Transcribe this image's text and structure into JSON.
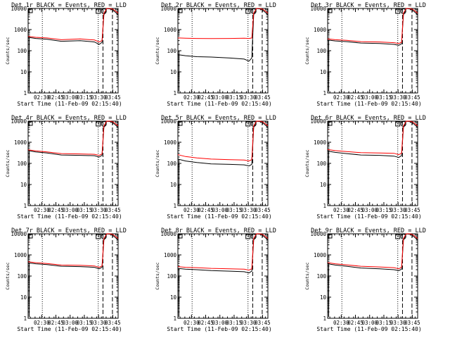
{
  "figure": {
    "xaxis_label": "Start Time (11-Feb-09 02:15:40)",
    "ylabel": "Counts/sec",
    "y_ticks": [
      "1",
      "10",
      "100",
      "1000",
      "10000"
    ],
    "x_ticks": [
      "02:30",
      "02:45",
      "03:00",
      "03:15",
      "03:30",
      "03:45"
    ],
    "y_scale": "log",
    "colors": {
      "events": "#000000",
      "lld": "#ff0000"
    }
  },
  "chart_data": [
    {
      "type": "line",
      "title": "Det 1r BLACK = Events, RED = LLD",
      "xlabel": "Start Time (11-Feb-09 02:15:40)",
      "ylabel": "Counts/sec",
      "y_scale": "log",
      "ylim": [
        1,
        10000
      ],
      "x_unit": "minutes after 02:15:40",
      "xlim": [
        0,
        95
      ],
      "x": [
        0,
        8,
        20,
        35,
        55,
        70,
        75,
        78,
        80,
        83,
        87,
        90,
        95
      ],
      "series": [
        {
          "name": "Events",
          "values": [
            430,
            380,
            350,
            280,
            300,
            260,
            200,
            250,
            5000,
            9800,
            9500,
            8000,
            5000
          ]
        },
        {
          "name": "LLD",
          "values": [
            470,
            430,
            400,
            330,
            360,
            320,
            260,
            300,
            6000,
            10500,
            10000,
            9000,
            6000
          ]
        }
      ],
      "vlines_dotted": [
        15,
        74
      ],
      "vlines_dashed": [
        79,
        89
      ]
    },
    {
      "type": "line",
      "title": "Det 2r BLACK = Events, RED = LLD",
      "xlabel": "Start Time (11-Feb-09 02:15:40)",
      "ylabel": "Counts/sec",
      "y_scale": "log",
      "ylim": [
        1,
        10000
      ],
      "xlim": [
        0,
        95
      ],
      "x": [
        0,
        8,
        20,
        35,
        55,
        70,
        75,
        78,
        80,
        83,
        87,
        90,
        95
      ],
      "series": [
        {
          "name": "Events",
          "values": [
            65,
            58,
            52,
            50,
            45,
            40,
            32,
            45,
            5000,
            9800,
            9500,
            8000,
            5000
          ]
        },
        {
          "name": "LLD",
          "values": [
            400,
            390,
            380,
            375,
            380,
            390,
            380,
            400,
            6000,
            10500,
            10000,
            9000,
            6000
          ]
        }
      ],
      "vlines_dotted": [
        15,
        74
      ],
      "vlines_dashed": [
        79,
        89
      ]
    },
    {
      "type": "line",
      "title": "Det 3r BLACK = Events, RED = LLD",
      "xlabel": "Start Time (11-Feb-09 02:15:40)",
      "ylabel": "Counts/sec",
      "y_scale": "log",
      "ylim": [
        1,
        10000
      ],
      "xlim": [
        0,
        95
      ],
      "x": [
        0,
        8,
        20,
        35,
        55,
        70,
        75,
        78,
        80,
        83,
        87,
        90,
        95
      ],
      "series": [
        {
          "name": "Events",
          "values": [
            320,
            290,
            270,
            230,
            220,
            200,
            180,
            210,
            5000,
            9800,
            9500,
            8000,
            5000
          ]
        },
        {
          "name": "LLD",
          "values": [
            360,
            330,
            310,
            270,
            260,
            240,
            220,
            250,
            6000,
            10500,
            10000,
            9000,
            6000
          ]
        }
      ],
      "vlines_dotted": [
        15,
        74
      ],
      "vlines_dashed": [
        79,
        89
      ]
    },
    {
      "type": "line",
      "title": "Det 4r BLACK = Events, RED = LLD",
      "xlabel": "Start Time (11-Feb-09 02:15:40)",
      "ylabel": "Counts/sec",
      "y_scale": "log",
      "ylim": [
        1,
        10000
      ],
      "xlim": [
        0,
        95
      ],
      "x": [
        0,
        8,
        20,
        35,
        55,
        70,
        75,
        78,
        80,
        83,
        87,
        90,
        95
      ],
      "series": [
        {
          "name": "Events",
          "values": [
            400,
            350,
            310,
            250,
            240,
            230,
            200,
            240,
            5000,
            9800,
            9500,
            8000,
            5000
          ]
        },
        {
          "name": "LLD",
          "values": [
            440,
            390,
            350,
            290,
            280,
            270,
            240,
            280,
            6000,
            10500,
            10000,
            9000,
            6000
          ]
        }
      ],
      "vlines_dotted": [
        15,
        74
      ],
      "vlines_dashed": [
        79,
        89
      ]
    },
    {
      "type": "line",
      "title": "Det 5r BLACK = Events, RED = LLD",
      "xlabel": "Start Time (11-Feb-09 02:15:40)",
      "ylabel": "Counts/sec",
      "y_scale": "log",
      "ylim": [
        1,
        10000
      ],
      "xlim": [
        0,
        95
      ],
      "x": [
        0,
        8,
        20,
        35,
        55,
        70,
        75,
        78,
        80,
        83,
        87,
        90,
        95
      ],
      "series": [
        {
          "name": "Events",
          "values": [
            160,
            130,
            110,
            95,
            90,
            85,
            75,
            90,
            5000,
            9800,
            9500,
            8000,
            5000
          ]
        },
        {
          "name": "LLD",
          "values": [
            260,
            210,
            180,
            160,
            150,
            145,
            130,
            150,
            6000,
            10500,
            10000,
            9000,
            6000
          ]
        }
      ],
      "vlines_dotted": [
        15,
        74
      ],
      "vlines_dashed": [
        79,
        89
      ]
    },
    {
      "type": "line",
      "title": "Det 6r BLACK = Events, RED = LLD",
      "xlabel": "Start Time (11-Feb-09 02:15:40)",
      "ylabel": "Counts/sec",
      "y_scale": "log",
      "ylim": [
        1,
        10000
      ],
      "xlim": [
        0,
        95
      ],
      "x": [
        0,
        8,
        20,
        35,
        55,
        70,
        75,
        78,
        80,
        83,
        87,
        90,
        95
      ],
      "series": [
        {
          "name": "Events",
          "values": [
            380,
            330,
            290,
            250,
            240,
            220,
            190,
            230,
            5000,
            9800,
            9500,
            8000,
            5000
          ]
        },
        {
          "name": "LLD",
          "values": [
            450,
            400,
            360,
            320,
            310,
            300,
            260,
            300,
            6000,
            10500,
            10000,
            9000,
            6000
          ]
        }
      ],
      "vlines_dotted": [
        15,
        74
      ],
      "vlines_dashed": [
        79,
        89
      ]
    },
    {
      "type": "line",
      "title": "Det 7r BLACK = Events, RED = LLD",
      "xlabel": "Start Time (11-Feb-09 02:15:40)",
      "ylabel": "Counts/sec",
      "y_scale": "log",
      "ylim": [
        1,
        10000
      ],
      "xlim": [
        0,
        95
      ],
      "x": [
        0,
        8,
        20,
        35,
        55,
        70,
        75,
        78,
        80,
        83,
        87,
        90,
        95
      ],
      "series": [
        {
          "name": "Events",
          "values": [
            420,
            380,
            350,
            290,
            280,
            260,
            220,
            260,
            5000,
            9800,
            9500,
            8000,
            5000
          ]
        },
        {
          "name": "LLD",
          "values": [
            470,
            430,
            390,
            330,
            320,
            300,
            260,
            300,
            6000,
            10500,
            10000,
            9000,
            6000
          ]
        }
      ],
      "vlines_dotted": [
        15,
        74
      ],
      "vlines_dashed": [
        79,
        89
      ]
    },
    {
      "type": "line",
      "title": "Det 8r BLACK = Events, RED = LLD",
      "xlabel": "Start Time (11-Feb-09 02:15:40)",
      "ylabel": "Counts/sec",
      "y_scale": "log",
      "ylim": [
        1,
        10000
      ],
      "xlim": [
        0,
        95
      ],
      "x": [
        0,
        8,
        20,
        35,
        55,
        70,
        75,
        78,
        80,
        83,
        87,
        90,
        95
      ],
      "series": [
        {
          "name": "Events",
          "values": [
            230,
            210,
            200,
            180,
            170,
            160,
            140,
            170,
            5000,
            9800,
            9500,
            8000,
            5000
          ]
        },
        {
          "name": "LLD",
          "values": [
            280,
            260,
            250,
            230,
            220,
            210,
            190,
            220,
            6000,
            10500,
            10000,
            9000,
            6000
          ]
        }
      ],
      "vlines_dotted": [
        15,
        74
      ],
      "vlines_dashed": [
        79,
        89
      ]
    },
    {
      "type": "line",
      "title": "Det 9r BLACK = Events, RED = LLD",
      "xlabel": "Start Time (11-Feb-09 02:15:40)",
      "ylabel": "Counts/sec",
      "y_scale": "log",
      "ylim": [
        1,
        10000
      ],
      "xlim": [
        0,
        95
      ],
      "x": [
        0,
        8,
        20,
        35,
        55,
        70,
        75,
        78,
        80,
        83,
        87,
        90,
        95
      ],
      "series": [
        {
          "name": "Events",
          "values": [
            380,
            330,
            290,
            240,
            220,
            200,
            180,
            210,
            5000,
            9800,
            9500,
            8000,
            5000
          ]
        },
        {
          "name": "LLD",
          "values": [
            430,
            380,
            340,
            290,
            270,
            250,
            220,
            260,
            6000,
            10500,
            10000,
            9000,
            6000
          ]
        }
      ],
      "vlines_dotted": [
        15,
        74
      ],
      "vlines_dashed": [
        79,
        89
      ]
    }
  ]
}
